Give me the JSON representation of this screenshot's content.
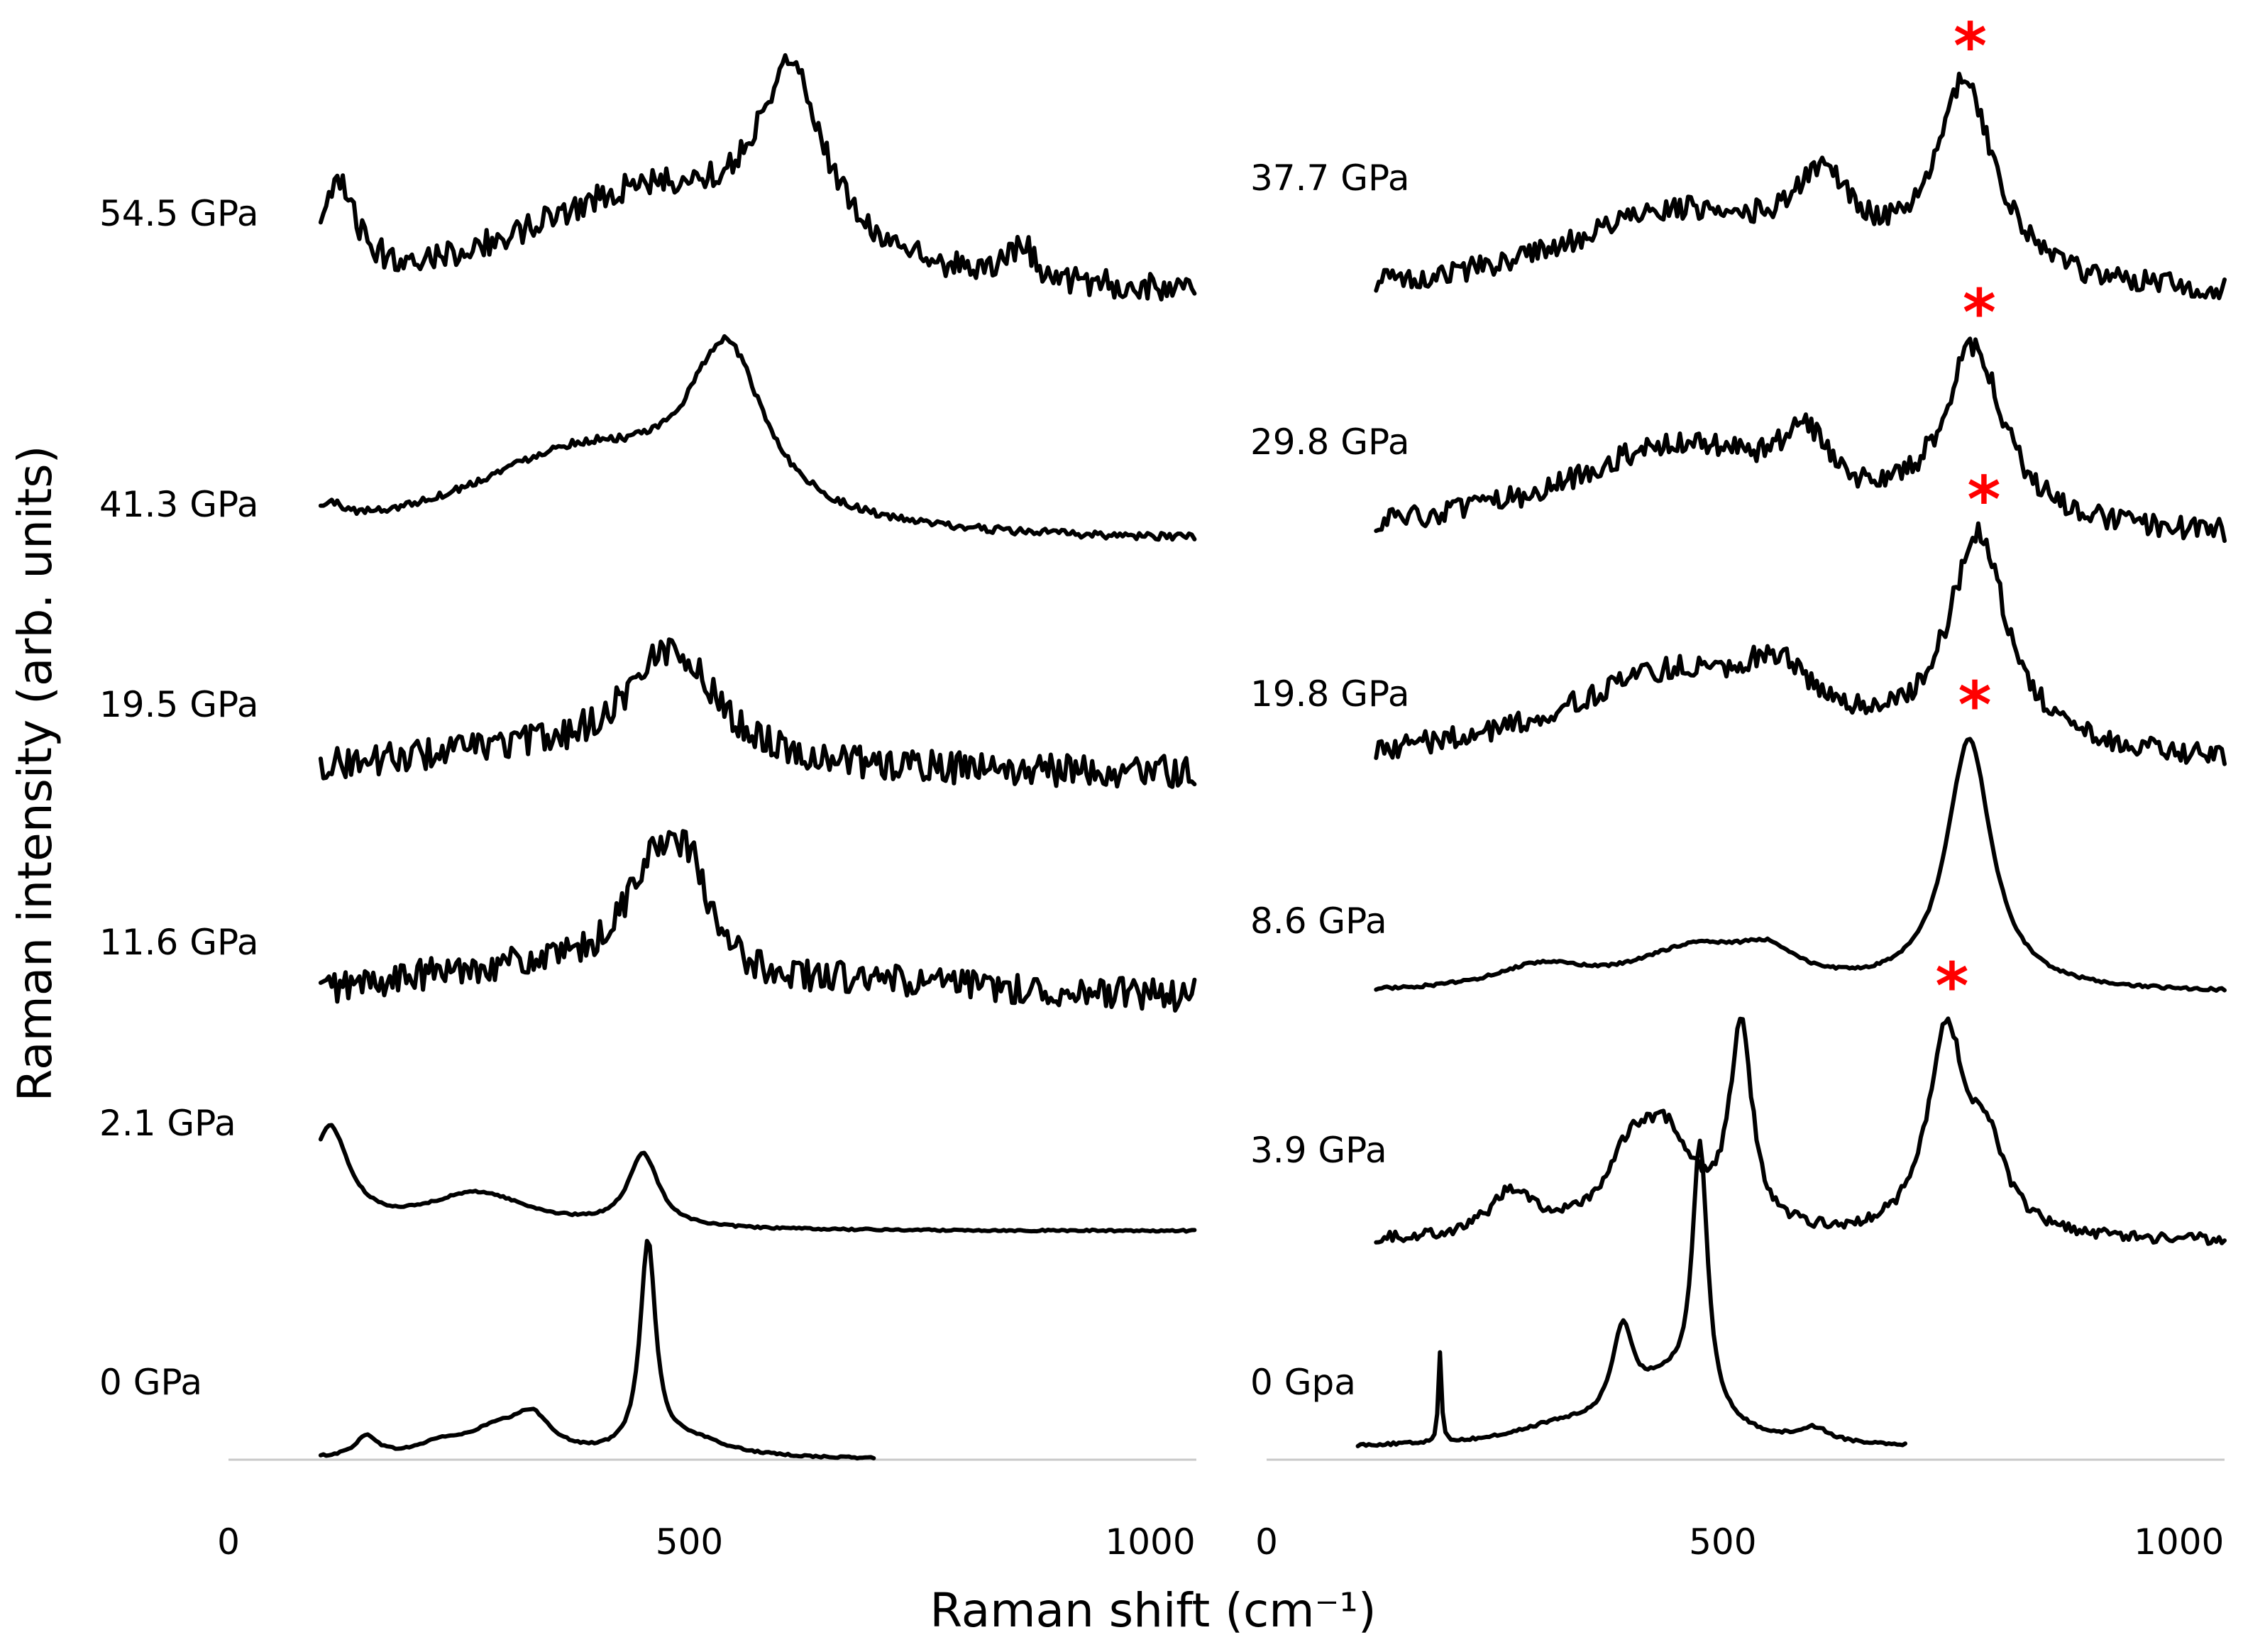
{
  "chart_data": [
    {
      "type": "line",
      "panel": "left",
      "xlabel": "Raman shift (cm⁻¹)",
      "ylabel": "Raman intensity (arb. units)",
      "xlim": [
        0,
        1050
      ],
      "xticks": [
        0,
        500,
        1000
      ],
      "baseline": true,
      "series": [
        {
          "name": "0 GPa",
          "label": "0 GPa",
          "xrange": [
            100,
            700
          ],
          "noise": 0.02,
          "peaks": [
            [
              150,
              0.45,
              15
            ],
            [
              230,
              0.25,
              30
            ],
            [
              290,
              0.55,
              40
            ],
            [
              330,
              0.75,
              25
            ],
            [
              455,
              4.6,
              10
            ],
            [
              500,
              0.4,
              50
            ]
          ]
        },
        {
          "name": "2.1 GPa",
          "label": "2.1 GPa",
          "xrange": [
            100,
            1050
          ],
          "noise": 0.02,
          "peaks": [
            [
              110,
              2.2,
              25
            ],
            [
              270,
              0.8,
              70
            ],
            [
              450,
              1.6,
              20
            ]
          ]
        },
        {
          "name": "11.6 GPa",
          "label": "11.6 GPa",
          "xrange": [
            100,
            1050
          ],
          "noise": 0.35,
          "peaks": [
            [
              300,
              0.6,
              150
            ],
            [
              460,
              2.4,
              40
            ],
            [
              500,
              1.8,
              25
            ],
            [
              700,
              0.3,
              200
            ]
          ]
        },
        {
          "name": "19.5 GPa",
          "label": "19.5 GPa",
          "xrange": [
            100,
            1050
          ],
          "noise": 0.35,
          "peaks": [
            [
              300,
              0.4,
              150
            ],
            [
              480,
              2.6,
              60
            ]
          ]
        },
        {
          "name": "41.3 GPa",
          "label": "41.3 GPa",
          "xrange": [
            100,
            1050
          ],
          "noise": 0.08,
          "peaks": [
            [
              110,
              0.4,
              20
            ],
            [
              380,
              1.9,
              150
            ],
            [
              540,
              3.6,
              50
            ]
          ]
        },
        {
          "name": "54.5 GPa",
          "label": "54.5 GPa",
          "xrange": [
            100,
            1050
          ],
          "noise": 0.3,
          "peaks": [
            [
              120,
              2.0,
              22
            ],
            [
              450,
              2.2,
              170
            ],
            [
              610,
              4.0,
              45
            ],
            [
              860,
              0.8,
              15
            ]
          ]
        }
      ]
    },
    {
      "type": "line",
      "panel": "right",
      "xlabel": "Raman shift (cm⁻¹)",
      "xlim": [
        0,
        1050
      ],
      "xticks": [
        0,
        500,
        1000
      ],
      "baseline": true,
      "series": [
        {
          "name": "0 Gpa",
          "label": "0 Gpa",
          "xrange": [
            100,
            700
          ],
          "noise": 0.03,
          "peaks": [
            [
              190,
              2.0,
              2
            ],
            [
              320,
              0.35,
              60
            ],
            [
              390,
              1.9,
              14
            ],
            [
              440,
              1.3,
              50
            ],
            [
              475,
              5.8,
              10
            ],
            [
              600,
              0.3,
              20
            ]
          ]
        },
        {
          "name": "3.9 GPa",
          "label": "3.9 GPa",
          "xrange": [
            120,
            1050
          ],
          "noise": 0.12,
          "peaks": [
            [
              270,
              1.0,
              30
            ],
            [
              400,
              1.6,
              35
            ],
            [
              440,
              1.8,
              35
            ],
            [
              520,
              4.4,
              15
            ],
            [
              745,
              4.4,
              25
            ],
            [
              790,
              1.7,
              25
            ]
          ],
          "marker_x": 745
        },
        {
          "name": "8.6 GPa",
          "label": "8.6 GPa",
          "xrange": [
            120,
            1050
          ],
          "noise": 0.03,
          "peaks": [
            [
              300,
              0.5,
              60
            ],
            [
              470,
              0.9,
              80
            ],
            [
              550,
              0.6,
              40
            ],
            [
              770,
              5.5,
              30
            ]
          ],
          "marker_x": 770
        },
        {
          "name": "19.8 GPa",
          "label": "19.8 GPa",
          "xrange": [
            120,
            1050
          ],
          "noise": 0.25,
          "peaks": [
            [
              450,
              2.0,
              160
            ],
            [
              560,
              1.0,
              40
            ],
            [
              780,
              4.7,
              40
            ]
          ],
          "marker_x": 780
        },
        {
          "name": "29.8 GPa",
          "label": "29.8 GPa",
          "xrange": [
            120,
            1050
          ],
          "noise": 0.25,
          "peaks": [
            [
              450,
              2.0,
              160
            ],
            [
              590,
              1.3,
              30
            ],
            [
              775,
              3.8,
              40
            ]
          ],
          "marker_x": 775
        },
        {
          "name": "37.7 GPa",
          "label": "37.7 GPa",
          "xrange": [
            120,
            1050
          ],
          "noise": 0.25,
          "peaks": [
            [
              450,
              1.8,
              160
            ],
            [
              610,
              1.8,
              40
            ],
            [
              765,
              4.3,
              40
            ]
          ],
          "marker_x": 765
        }
      ]
    }
  ],
  "figure": {
    "ylabel": "Raman intensity (arb. units)",
    "xlabel": "Raman shift (cm⁻¹)",
    "marker_symbol": "*",
    "marker_color": "#ff0000",
    "line_color": "#000000",
    "baseline_color": "#c8c8c8"
  }
}
